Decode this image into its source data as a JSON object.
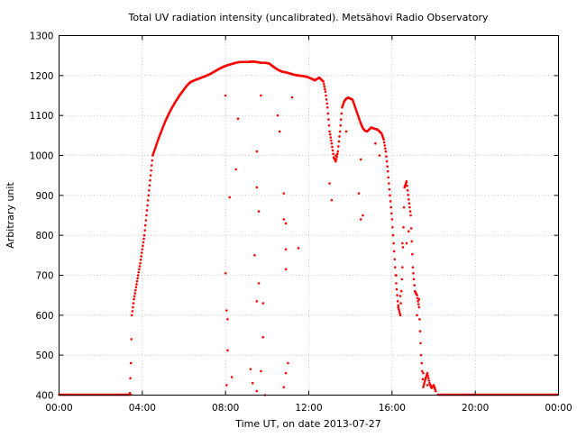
{
  "chart_data": {
    "type": "scatter",
    "title": "Total UV radiation intensity (uncalibrated). Metsähovi Radio Observatory",
    "xlabel": "Time UT, on date 2013-07-27",
    "ylabel": "Arbitrary unit",
    "xlim": [
      0,
      24
    ],
    "ylim": [
      400,
      1300
    ],
    "x_ticks": [
      0,
      4,
      8,
      12,
      16,
      20,
      24
    ],
    "x_tick_labels": [
      "00:00",
      "04:00",
      "08:00",
      "12:00",
      "16:00",
      "20:00",
      "00:00"
    ],
    "y_ticks": [
      400,
      500,
      600,
      700,
      800,
      900,
      1000,
      1100,
      1200,
      1300
    ],
    "y_tick_labels": [
      "400",
      "500",
      "600",
      "700",
      "800",
      "900",
      "1000",
      "1100",
      "1200",
      "1300"
    ],
    "grid": true,
    "marker_color": "#ff0000",
    "baseline_segments": [
      [
        0.0,
        3.45,
        401
      ],
      [
        18.2,
        24.0,
        401
      ]
    ],
    "main_curve": [
      [
        3.4,
        405
      ],
      [
        3.45,
        480
      ],
      [
        3.5,
        600
      ],
      [
        3.6,
        640
      ],
      [
        3.7,
        670
      ],
      [
        3.8,
        700
      ],
      [
        3.9,
        730
      ],
      [
        4.0,
        765
      ],
      [
        4.1,
        800
      ],
      [
        4.2,
        850
      ],
      [
        4.3,
        900
      ],
      [
        4.4,
        950
      ],
      [
        4.5,
        1000
      ],
      [
        4.6,
        1015
      ],
      [
        4.7,
        1030
      ],
      [
        4.8,
        1045
      ],
      [
        4.9,
        1058
      ],
      [
        5.0,
        1072
      ],
      [
        5.1,
        1085
      ],
      [
        5.2,
        1096
      ],
      [
        5.3,
        1107
      ],
      [
        5.4,
        1117
      ],
      [
        5.5,
        1126
      ],
      [
        5.6,
        1135
      ],
      [
        5.7,
        1143
      ],
      [
        5.8,
        1151
      ],
      [
        5.9,
        1158
      ],
      [
        6.0,
        1165
      ],
      [
        6.1,
        1172
      ],
      [
        6.2,
        1178
      ],
      [
        6.3,
        1183
      ],
      [
        6.5,
        1188
      ],
      [
        6.7,
        1192
      ],
      [
        6.9,
        1196
      ],
      [
        7.1,
        1200
      ],
      [
        7.3,
        1205
      ],
      [
        7.5,
        1211
      ],
      [
        7.7,
        1217
      ],
      [
        7.9,
        1222
      ],
      [
        8.1,
        1226
      ],
      [
        8.3,
        1229
      ],
      [
        8.5,
        1232
      ],
      [
        8.7,
        1234
      ],
      [
        8.9,
        1234
      ],
      [
        9.1,
        1234
      ],
      [
        9.3,
        1235
      ],
      [
        9.5,
        1234
      ],
      [
        9.7,
        1232
      ],
      [
        9.9,
        1232
      ],
      [
        10.1,
        1230
      ],
      [
        10.3,
        1222
      ],
      [
        10.5,
        1215
      ],
      [
        10.7,
        1210
      ],
      [
        10.9,
        1208
      ],
      [
        11.1,
        1205
      ],
      [
        11.3,
        1202
      ],
      [
        11.5,
        1200
      ],
      [
        11.7,
        1199
      ],
      [
        11.9,
        1197
      ],
      [
        12.1,
        1193
      ],
      [
        12.3,
        1188
      ],
      [
        12.5,
        1195
      ],
      [
        12.7,
        1185
      ],
      [
        12.8,
        1160
      ],
      [
        12.9,
        1120
      ],
      [
        13.0,
        1060
      ],
      [
        13.1,
        1030
      ],
      [
        13.2,
        995
      ],
      [
        13.3,
        985
      ],
      [
        13.4,
        1010
      ],
      [
        13.5,
        1060
      ],
      [
        13.6,
        1120
      ],
      [
        13.7,
        1135
      ],
      [
        13.8,
        1142
      ],
      [
        13.9,
        1145
      ],
      [
        14.0,
        1142
      ],
      [
        14.1,
        1140
      ],
      [
        14.2,
        1125
      ],
      [
        14.3,
        1110
      ],
      [
        14.4,
        1095
      ],
      [
        14.5,
        1080
      ],
      [
        14.6,
        1068
      ],
      [
        14.7,
        1062
      ],
      [
        14.8,
        1060
      ],
      [
        14.9,
        1065
      ],
      [
        15.0,
        1070
      ],
      [
        15.1,
        1068
      ],
      [
        15.2,
        1066
      ],
      [
        15.3,
        1065
      ],
      [
        15.4,
        1060
      ],
      [
        15.5,
        1055
      ],
      [
        15.6,
        1040
      ],
      [
        15.7,
        1010
      ],
      [
        15.8,
        960
      ],
      [
        15.9,
        900
      ],
      [
        16.0,
        840
      ],
      [
        16.1,
        760
      ],
      [
        16.2,
        680
      ],
      [
        16.3,
        620
      ],
      [
        16.4,
        600
      ],
      [
        16.5,
        720
      ],
      [
        16.6,
        920
      ],
      [
        16.7,
        935
      ],
      [
        16.8,
        890
      ],
      [
        16.9,
        850
      ],
      [
        17.0,
        720
      ],
      [
        17.1,
        660
      ],
      [
        17.2,
        650
      ],
      [
        17.3,
        620
      ],
      [
        17.4,
        500
      ],
      [
        17.5,
        420
      ],
      [
        17.6,
        440
      ],
      [
        17.7,
        455
      ],
      [
        17.8,
        430
      ],
      [
        17.9,
        418
      ],
      [
        18.0,
        425
      ],
      [
        18.1,
        410
      ]
    ],
    "outliers": [
      [
        8.0,
        1150
      ],
      [
        8.0,
        705
      ],
      [
        8.05,
        612
      ],
      [
        8.1,
        590
      ],
      [
        8.1,
        512
      ],
      [
        8.05,
        425
      ],
      [
        8.2,
        895
      ],
      [
        8.5,
        965
      ],
      [
        8.6,
        1092
      ],
      [
        8.3,
        445
      ],
      [
        9.2,
        465
      ],
      [
        9.3,
        430
      ],
      [
        9.5,
        920
      ],
      [
        9.4,
        750
      ],
      [
        9.6,
        860
      ],
      [
        9.7,
        1150
      ],
      [
        9.6,
        680
      ],
      [
        9.5,
        635
      ],
      [
        9.7,
        460
      ],
      [
        9.8,
        630
      ],
      [
        9.8,
        545
      ],
      [
        9.5,
        410
      ],
      [
        9.9,
        400
      ],
      [
        9.5,
        1010
      ],
      [
        10.8,
        905
      ],
      [
        10.8,
        840
      ],
      [
        10.9,
        830
      ],
      [
        10.9,
        765
      ],
      [
        10.9,
        715
      ],
      [
        11.0,
        480
      ],
      [
        10.9,
        455
      ],
      [
        10.8,
        420
      ],
      [
        10.5,
        1100
      ],
      [
        10.6,
        1060
      ],
      [
        11.2,
        1145
      ],
      [
        11.5,
        768
      ],
      [
        13.0,
        930
      ],
      [
        13.1,
        888
      ],
      [
        13.3,
        1000
      ],
      [
        13.8,
        1060
      ],
      [
        14.4,
        905
      ],
      [
        14.5,
        840
      ],
      [
        14.6,
        850
      ],
      [
        14.5,
        990
      ],
      [
        15.2,
        1030
      ],
      [
        15.4,
        1000
      ],
      [
        16.3,
        625
      ],
      [
        16.4,
        648
      ],
      [
        16.2,
        700
      ],
      [
        16.5,
        780
      ],
      [
        16.7,
        780
      ],
      [
        16.8,
        810
      ],
      [
        17.2,
        600
      ],
      [
        17.3,
        640
      ],
      [
        17.5,
        455
      ],
      [
        17.7,
        425
      ]
    ]
  }
}
